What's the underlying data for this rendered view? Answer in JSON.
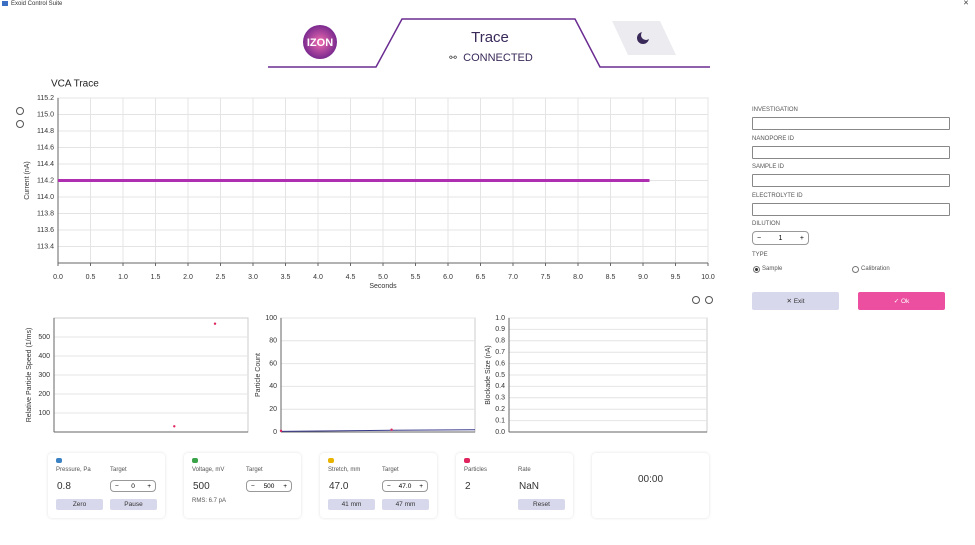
{
  "window": {
    "title": "Exoid Control Suite"
  },
  "header": {
    "logo": "IZON",
    "title": "Trace",
    "status": "CONNECTED"
  },
  "chart_data": [
    {
      "type": "line",
      "title": "VCA Trace",
      "x_label": "Seconds",
      "y_label": "Current (nA)",
      "x": [
        0,
        1,
        2,
        3,
        4,
        5,
        6,
        7,
        8,
        9,
        9.1
      ],
      "values": [
        114.2,
        114.2,
        114.2,
        114.2,
        114.2,
        114.2,
        114.2,
        114.2,
        114.2,
        114.2,
        114.2
      ],
      "color": "#b02fb0",
      "xlim": [
        0,
        10
      ],
      "ylim": [
        113.2,
        115.2
      ],
      "xticks": [
        {
          "value": 0,
          "label": "0.0"
        },
        0.5,
        {
          "value": 1,
          "label": "1.0"
        },
        1.5,
        {
          "value": 2,
          "label": "2.0"
        },
        2.5,
        {
          "value": 3,
          "label": "3.0"
        },
        3.5,
        {
          "value": 4,
          "label": "4.0"
        },
        4.5,
        {
          "value": 5,
          "label": "5.0"
        },
        5.5,
        {
          "value": 6,
          "label": "6.0"
        },
        6.5,
        {
          "value": 7,
          "label": "7.0"
        },
        7.5,
        {
          "value": 8,
          "label": "8.0"
        },
        8.5,
        {
          "value": 9,
          "label": "9.0"
        },
        9.5,
        {
          "value": 10,
          "label": "10.0"
        }
      ],
      "yticks": [
        113.4,
        113.6,
        113.8,
        {
          "value": 114,
          "label": "114.0"
        },
        114.2,
        114.4,
        114.6,
        114.8,
        {
          "value": 115,
          "label": "115.0"
        },
        115.2
      ],
      "grid": true
    },
    {
      "type": "scatter",
      "y_label": "Relative Particle Speed (1/ms)",
      "x": [
        0.62,
        0.83
      ],
      "values": [
        30,
        570
      ],
      "color": "#e0245e",
      "xlim": [
        0,
        1
      ],
      "ylim": [
        0,
        600
      ],
      "yticks": [
        100,
        200,
        300,
        400,
        500
      ],
      "grid": true
    },
    {
      "type": "line",
      "y_label": "Particle Count",
      "x": [
        0,
        0.57,
        1
      ],
      "values": [
        0.5,
        1.5,
        2
      ],
      "color": "#3a3a8c",
      "markers": {
        "x": [
          0,
          0.57
        ],
        "values": [
          1,
          2
        ],
        "color": "#e0245e"
      },
      "xlim": [
        0,
        1
      ],
      "ylim": [
        0,
        100
      ],
      "yticks": [
        0,
        20,
        40,
        60,
        80,
        100
      ],
      "grid": true
    },
    {
      "type": "scatter",
      "y_label": "Blockade Size (nA)",
      "x": [],
      "values": [],
      "color": "#e0245e",
      "xlim": [
        0,
        1
      ],
      "ylim": [
        0,
        1
      ],
      "yticks": [
        {
          "value": 0,
          "label": "0.0"
        },
        0.1,
        0.2,
        0.3,
        0.4,
        0.5,
        0.6,
        0.7,
        0.8,
        0.9,
        {
          "value": 1,
          "label": "1.0"
        }
      ],
      "grid": true
    }
  ],
  "form": {
    "fields": [
      "INVESTIGATION",
      "NANOPORE ID",
      "SAMPLE ID",
      "ELECTROLYTE ID"
    ],
    "dilution": {
      "label": "DILUTION",
      "value": "1"
    },
    "type": {
      "label": "TYPE",
      "options": [
        "Sample",
        "Calibration"
      ],
      "selected": 0
    },
    "buttons": {
      "exit": "Exit",
      "ok": "Ok"
    }
  },
  "controls": [
    {
      "label": "Pressure, Pa",
      "value": "0.8",
      "target_label": "Target",
      "target": "0",
      "buttons": [
        "Zero",
        "Pause"
      ],
      "icon_color": "#3b82c4"
    },
    {
      "label": "Voltage, mV",
      "value": "500",
      "target_label": "Target",
      "target": "500",
      "note": "RMS: 6.7 pA",
      "buttons": [],
      "icon_color": "#3aa34a"
    },
    {
      "label": "Stretch, mm",
      "value": "47.0",
      "target_label": "Target",
      "target": "47.0",
      "buttons": [
        "41 mm",
        "47 mm"
      ],
      "icon_color": "#e8b400"
    },
    {
      "label": "Particles",
      "value": "2",
      "target_label": "Rate",
      "rate": "NaN",
      "buttons": [
        "Reset"
      ],
      "icon_color": "#e0245e"
    }
  ],
  "timer": "00:00"
}
